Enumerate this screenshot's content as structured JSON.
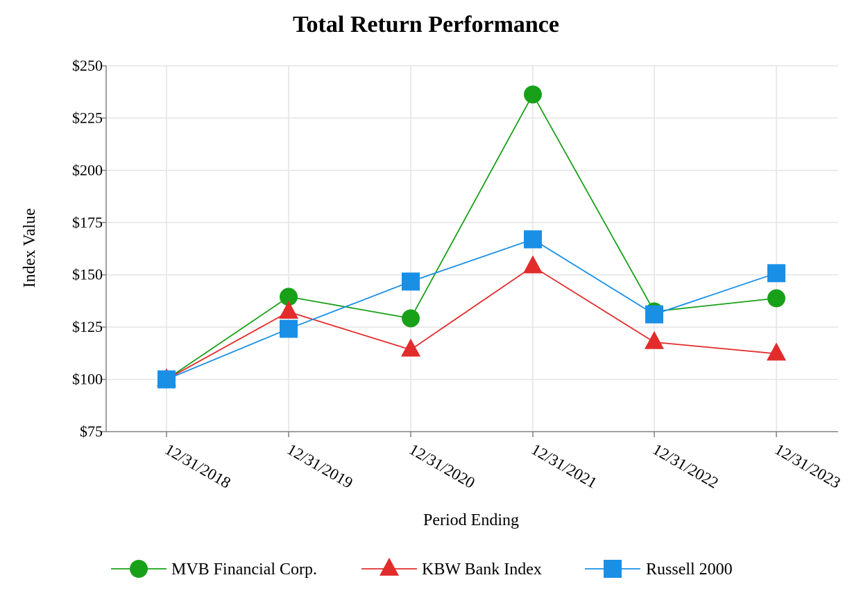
{
  "chart_data": {
    "type": "line",
    "title": "Total Return Performance",
    "xlabel": "Period Ending",
    "ylabel": "Index Value",
    "categories": [
      "12/31/2018",
      "12/31/2019",
      "12/31/2020",
      "12/31/2021",
      "12/31/2022",
      "12/31/2023"
    ],
    "ylim": [
      75,
      250
    ],
    "yticks": [
      75,
      100,
      125,
      150,
      175,
      200,
      225,
      250
    ],
    "ytick_labels": [
      "$75",
      "$100",
      "$125",
      "$150",
      "$175",
      "$200",
      "$225",
      "$250"
    ],
    "grid": true,
    "legend_position": "bottom",
    "series": [
      {
        "name": "MVB Financial Corp.",
        "color": "#18a018",
        "marker": "circle",
        "values": [
          100,
          139.5,
          129.2,
          236.3,
          132.5,
          138.8
        ]
      },
      {
        "name": "KBW Bank Index",
        "color": "#e22b2b",
        "marker": "triangle",
        "values": [
          100,
          132.3,
          114.2,
          154.0,
          117.8,
          112.3
        ]
      },
      {
        "name": "Russell 2000",
        "color": "#1a8fe6",
        "marker": "square",
        "values": [
          100,
          124.2,
          146.8,
          167.0,
          131.1,
          150.8
        ]
      }
    ]
  }
}
